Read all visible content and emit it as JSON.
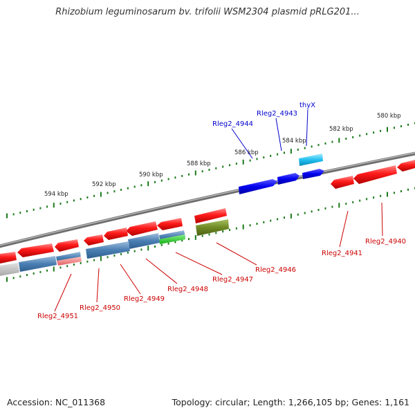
{
  "title": "Rhizobium leguminosarum bv. trifolii WSM2304 plasmid pRLG201...",
  "footer": {
    "accession": "Accession: NC_011368",
    "topology": "Topology: circular; Length: 1,266,105 bp; Genes: 1,161"
  },
  "ticks": [
    "580 kbp",
    "582 kbp",
    "584 kbp",
    "586 kbp",
    "588 kbp",
    "590 kbp",
    "592 kbp",
    "594 kbp"
  ],
  "gene_labels": {
    "thyx": "thyX",
    "g4943": "Rleg2_4943",
    "g4944": "Rleg2_4944",
    "g4940": "Rleg2_4940",
    "g4941": "Rleg2_4941",
    "g4946": "Rleg2_4946",
    "g4947": "Rleg2_4947",
    "g4948": "Rleg2_4948",
    "g4949": "Rleg2_4949",
    "g4950": "Rleg2_4950",
    "g4951": "Rleg2_4951"
  },
  "colors": {
    "forward_strand_labels": "#0000cc",
    "reverse_strand_labels": "#cc0000",
    "ticks": "#1a7a1a",
    "backbone": "#7a7a7a"
  }
}
